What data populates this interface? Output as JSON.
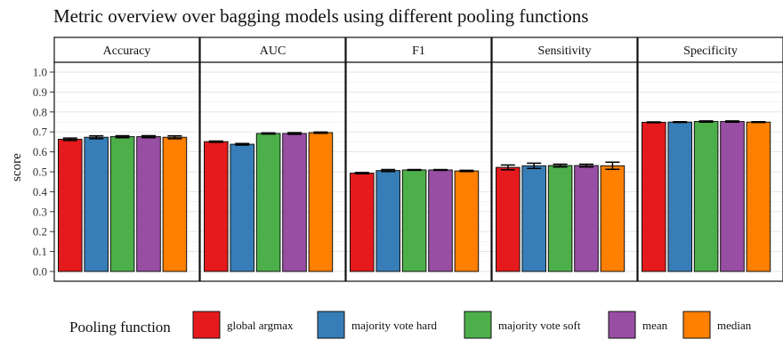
{
  "chart_data": {
    "type": "bar",
    "title": "Metric overview over bagging models using different pooling functions",
    "ylabel": "score",
    "xlabel": "",
    "ylim": [
      0,
      1.0
    ],
    "y_ticks": [
      "0.0",
      "0.1",
      "0.2",
      "0.3",
      "0.4",
      "0.5",
      "0.6",
      "0.7",
      "0.8",
      "0.9",
      "1.0"
    ],
    "y_tick_values": [
      0.0,
      0.1,
      0.2,
      0.3,
      0.4,
      0.5,
      0.6,
      0.7,
      0.8,
      0.9,
      1.0
    ],
    "grid": true,
    "legend_position": "bottom",
    "legend_title": "Pooling function",
    "series_names": [
      "global argmax",
      "majority vote hard",
      "majority vote soft",
      "mean",
      "median"
    ],
    "series_colors": [
      "#E41A1C",
      "#377EB8",
      "#4DAF4A",
      "#984EA3",
      "#FF7F00"
    ],
    "panels": [
      {
        "name": "Accuracy",
        "values": [
          0.663,
          0.673,
          0.676,
          0.676,
          0.673
        ],
        "errors": [
          0.006,
          0.007,
          0.005,
          0.005,
          0.007
        ]
      },
      {
        "name": "AUC",
        "values": [
          0.651,
          0.638,
          0.692,
          0.692,
          0.696
        ],
        "errors": [
          0.003,
          0.004,
          0.003,
          0.004,
          0.003
        ]
      },
      {
        "name": "F1",
        "values": [
          0.493,
          0.506,
          0.509,
          0.509,
          0.504
        ],
        "errors": [
          0.003,
          0.005,
          0.002,
          0.002,
          0.003
        ]
      },
      {
        "name": "Sensitivity",
        "values": [
          0.522,
          0.53,
          0.531,
          0.531,
          0.53
        ],
        "errors": [
          0.012,
          0.013,
          0.007,
          0.007,
          0.018
        ]
      },
      {
        "name": "Specificity",
        "values": [
          0.748,
          0.749,
          0.752,
          0.752,
          0.749
        ],
        "errors": [
          0.002,
          0.002,
          0.003,
          0.003,
          0.002
        ]
      }
    ]
  }
}
